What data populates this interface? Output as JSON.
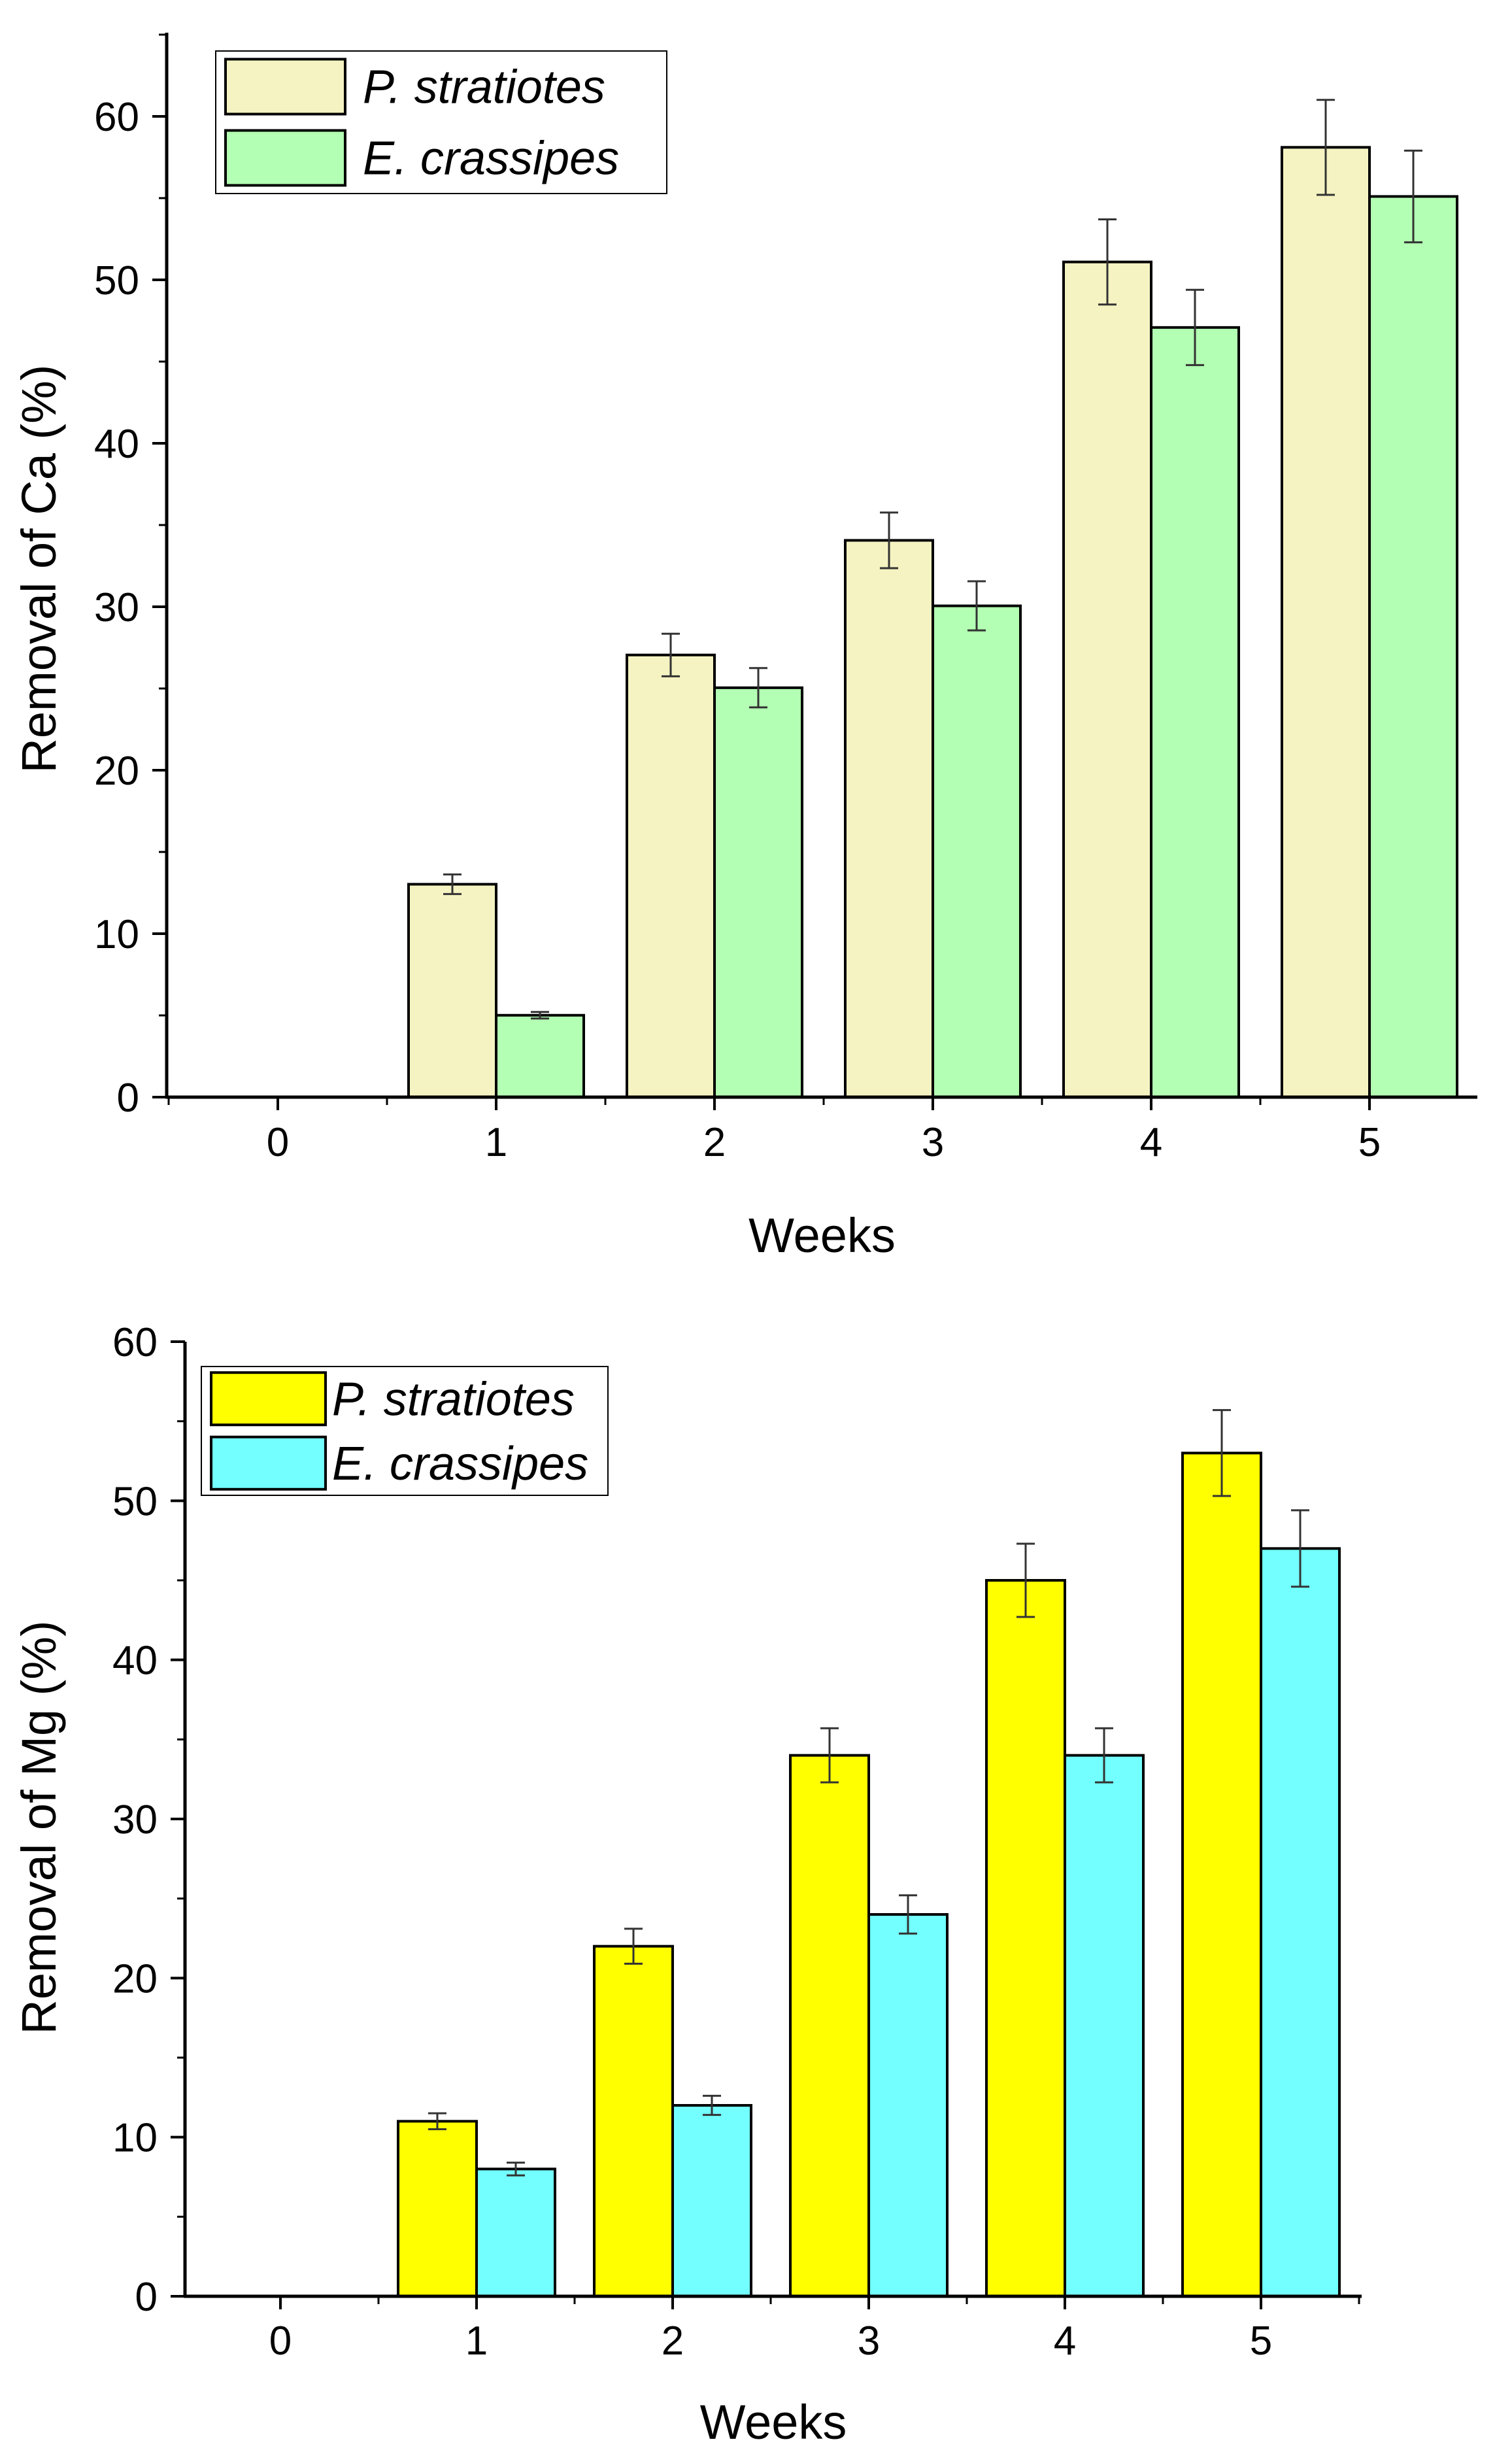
{
  "chart_data": [
    {
      "type": "bar",
      "title": "",
      "xlabel": "Weeks",
      "ylabel": "Removal of Ca (%)",
      "categories": [
        "0",
        "1",
        "2",
        "3",
        "4",
        "5"
      ],
      "ylim": [
        0,
        65
      ],
      "yticks": [
        "0",
        "10",
        "20",
        "30",
        "40",
        "50",
        "60"
      ],
      "legend_position": "top-left",
      "series": [
        {
          "name": "P. stratiotes",
          "color": "#f5f3c1",
          "values": [
            0,
            13,
            27,
            34,
            51,
            58
          ],
          "errors": [
            0,
            0.6,
            1.3,
            1.7,
            2.6,
            2.9
          ]
        },
        {
          "name": "E. crassipes",
          "color": "#b3ffb3",
          "values": [
            0,
            5,
            25,
            30,
            47,
            55
          ],
          "errors": [
            0,
            0.2,
            1.2,
            1.5,
            2.3,
            2.8
          ]
        }
      ]
    },
    {
      "type": "bar",
      "title": "",
      "xlabel": "Weeks",
      "ylabel": "Removal of Mg (%)",
      "categories": [
        "0",
        "1",
        "2",
        "3",
        "4",
        "5"
      ],
      "ylim": [
        0,
        60
      ],
      "yticks": [
        "0",
        "10",
        "20",
        "30",
        "40",
        "50",
        "60"
      ],
      "legend_position": "top-left",
      "series": [
        {
          "name": "P. stratiotes",
          "color": "#ffff00",
          "values": [
            0,
            11,
            22,
            34,
            45,
            53
          ],
          "errors": [
            0,
            0.5,
            1.1,
            1.7,
            2.3,
            2.7
          ]
        },
        {
          "name": "E. crassipes",
          "color": "#73ffff",
          "values": [
            0,
            8,
            12,
            24,
            34,
            47
          ],
          "errors": [
            0,
            0.4,
            0.6,
            1.2,
            1.7,
            2.4
          ]
        }
      ]
    }
  ]
}
